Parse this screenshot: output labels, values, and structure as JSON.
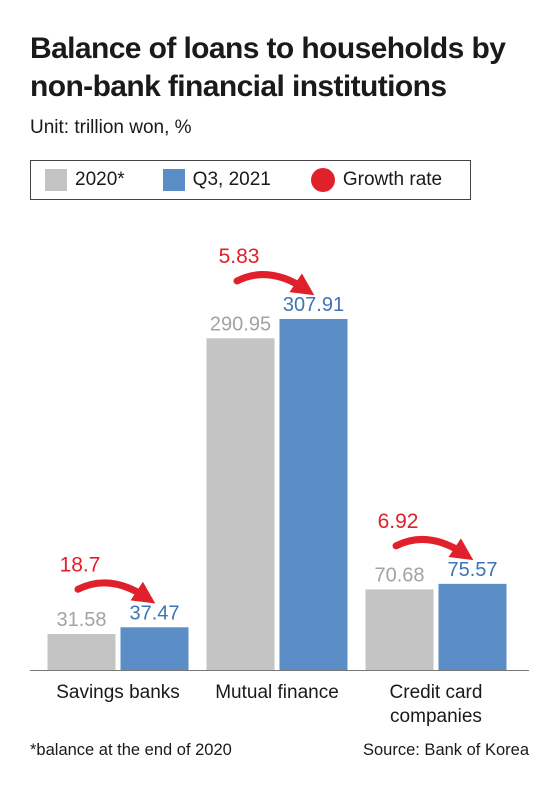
{
  "chart_data": {
    "type": "bar",
    "title": "Balance of loans to households by non-bank financial institutions",
    "subtitle": "Unit: trillion won, %",
    "categories": [
      "Savings banks",
      "Mutual finance",
      "Credit card companies"
    ],
    "series": [
      {
        "name": "2020*",
        "values": [
          31.58,
          290.95,
          70.68
        ],
        "color": "#c4c4c4"
      },
      {
        "name": "Q3, 2021",
        "values": [
          37.47,
          307.91,
          75.57
        ],
        "color": "#5b8ec6"
      }
    ],
    "value_labels": [
      [
        "31.58",
        "290.95",
        "70.68"
      ],
      [
        "37.47",
        "307.91",
        "75.57"
      ]
    ],
    "growth_rate": {
      "name": "Growth rate",
      "values": [
        "18.7",
        "5.83",
        "6.92"
      ],
      "color": "#e0202a"
    },
    "ylim": [
      0,
      340
    ],
    "label_colors": {
      "2020*": "#a3a3a3",
      "Q3, 2021": "#3d74b5",
      "growth": "#e0202a"
    },
    "footnote": "*balance at the end of 2020",
    "source": "Source: Bank of Korea"
  }
}
